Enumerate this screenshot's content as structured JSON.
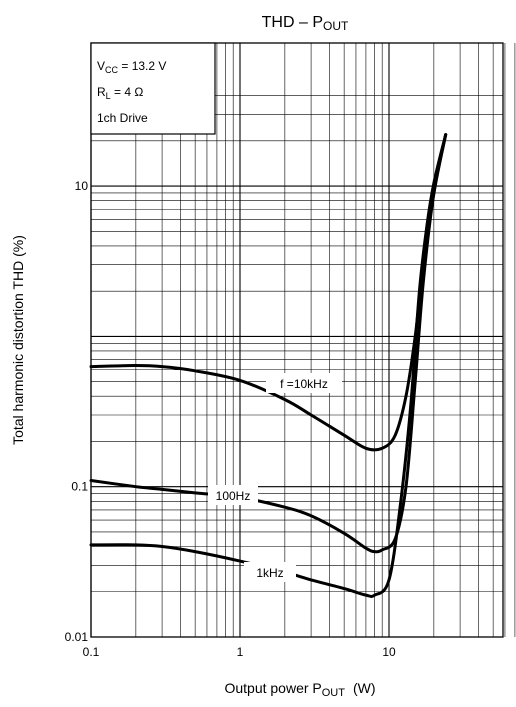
{
  "chart_data": {
    "type": "line",
    "title": "THD – P",
    "title_sub": "OUT",
    "xlabel": "Output power   P",
    "xlabel_sub": "OUT",
    "xlabel_unit": "(W)",
    "ylabel": "Total harmonic distortion   THD   (%)",
    "x_scale": "log",
    "y_scale": "log",
    "xlim": [
      0.1,
      70
    ],
    "ylim": [
      0.01,
      40
    ],
    "x_ticks": [
      {
        "value": 0.1,
        "label": "0.1"
      },
      {
        "value": 1,
        "label": "1"
      },
      {
        "value": 10,
        "label": "10"
      }
    ],
    "y_ticks": [
      {
        "value": 0.01,
        "label": "0.01"
      },
      {
        "value": 0.1,
        "label": "0.1"
      },
      {
        "value": 10,
        "label": "10"
      }
    ],
    "grid": true,
    "conditions": {
      "vcc_label": "V",
      "vcc_sub": "CC",
      "vcc_value": " = 13.2 V",
      "rl_label": "R",
      "rl_sub": "L",
      "rl_value": " = 4 Ω",
      "drive": "1ch Drive"
    },
    "series": [
      {
        "name": "f =10kHz",
        "x": [
          0.1,
          0.2,
          0.3,
          0.5,
          1,
          2,
          3,
          5,
          7,
          9,
          11,
          13,
          15,
          17,
          20,
          24
        ],
        "y": [
          0.63,
          0.64,
          0.63,
          0.59,
          0.51,
          0.38,
          0.3,
          0.22,
          0.18,
          0.18,
          0.22,
          0.4,
          1.0,
          3.0,
          9.0,
          22.0
        ]
      },
      {
        "name": "100Hz",
        "x": [
          0.1,
          0.2,
          0.3,
          0.5,
          1,
          2,
          3,
          5,
          7,
          8,
          9,
          11,
          13,
          15,
          17,
          20,
          24
        ],
        "y": [
          0.11,
          0.1,
          0.096,
          0.091,
          0.085,
          0.073,
          0.064,
          0.049,
          0.039,
          0.037,
          0.038,
          0.045,
          0.1,
          0.5,
          2.3,
          9.0,
          22.0
        ]
      },
      {
        "name": "1kHz",
        "x": [
          0.1,
          0.2,
          0.3,
          0.5,
          1,
          2,
          3,
          5,
          7,
          8,
          10,
          12,
          14,
          16,
          18,
          20,
          24
        ],
        "y": [
          0.041,
          0.041,
          0.04,
          0.037,
          0.032,
          0.027,
          0.024,
          0.021,
          0.019,
          0.019,
          0.024,
          0.08,
          0.35,
          2.0,
          5.5,
          10.5,
          22.0
        ]
      }
    ]
  }
}
